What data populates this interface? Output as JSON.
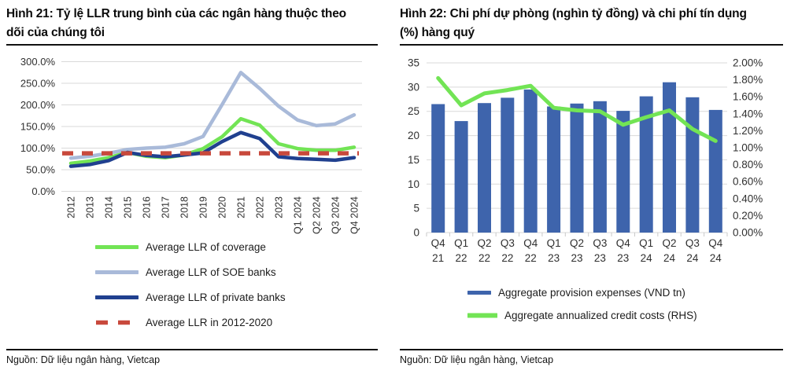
{
  "panels": {
    "left": {
      "title_lines": [
        "Hình 21: Tỷ lệ LLR trung bình của các ngân hàng thuộc theo",
        "dõi của chúng tôi"
      ],
      "source": "Nguồn: Dữ liệu ngân hàng, Vietcap"
    },
    "right": {
      "title_lines": [
        "Hình 22: Chi phí dự phòng (nghìn tỷ đồng) và chi phí tín dụng",
        "(%) hàng quý"
      ],
      "source": "Nguồn: Dữ liệu ngân hàng, Vietcap"
    }
  },
  "colors": {
    "coverage_green": "#72E455",
    "soe_light_blue": "#A9BAD9",
    "private_navy": "#20408F",
    "avg_dashed_red": "#C8493C",
    "bar_blue": "#3E64AC",
    "grid": "#D9D9D9",
    "axis_text": "#303030",
    "rule_black": "#111111"
  },
  "chart_data": [
    {
      "type": "line",
      "title": "Hình 21: Tỷ lệ LLR trung bình của các ngân hàng thuộc theo dõi của chúng tôi",
      "categories": [
        "2012",
        "2013",
        "2014",
        "2015",
        "2016",
        "2017",
        "2018",
        "2019",
        "2020",
        "2021",
        "2022",
        "2023",
        "Q1 2024",
        "Q2 2024",
        "Q3 2024",
        "Q4 2024"
      ],
      "series": [
        {
          "name": "Average LLR of coverage",
          "color": "#72E455",
          "style": "solid",
          "values": [
            65,
            70,
            78,
            90,
            81,
            78,
            84,
            99,
            126,
            168,
            153,
            110,
            99,
            95,
            95,
            102
          ]
        },
        {
          "name": "Average LLR of SOE banks",
          "color": "#A9BAD9",
          "style": "solid",
          "values": [
            77,
            81,
            88,
            97,
            100,
            102,
            110,
            127,
            200,
            275,
            238,
            197,
            165,
            152,
            156,
            177
          ]
        },
        {
          "name": "Average LLR of private banks",
          "color": "#20408F",
          "style": "solid",
          "values": [
            58,
            62,
            71,
            90,
            83,
            80,
            84,
            89,
            115,
            136,
            122,
            80,
            76,
            74,
            72,
            78
          ]
        },
        {
          "name": "Average LLR in 2012-2020",
          "color": "#C8493C",
          "style": "dashed",
          "values": [
            88,
            88,
            88,
            88,
            88,
            88,
            88,
            88,
            88,
            88,
            88,
            88,
            88,
            88,
            88,
            88
          ]
        }
      ],
      "ylim": [
        0,
        300
      ],
      "ytick_step": 50,
      "ytick_format": "0.0%",
      "grid": true,
      "legend_position": "bottom"
    },
    {
      "type": "bar-line-combo",
      "title": "Hình 22: Chi phí dự phòng (nghìn tỷ đồng) và chi phí tín dụng (%) hàng quý",
      "categories": [
        "Q4 21",
        "Q1 22",
        "Q2 22",
        "Q3 22",
        "Q4 22",
        "Q1 23",
        "Q2 23",
        "Q3 23",
        "Q4 23",
        "Q1 24",
        "Q2 24",
        "Q3 24",
        "Q4 24"
      ],
      "series": [
        {
          "name": "Aggregate provision expenses (VND tn)",
          "type": "bar",
          "axis": "left",
          "color": "#3E64AC",
          "values": [
            26.5,
            23,
            26.7,
            27.8,
            29.5,
            26,
            26.6,
            27.1,
            25.1,
            28.1,
            31,
            27.9,
            25.3
          ]
        },
        {
          "name": "Aggregate annualized credit costs (RHS)",
          "type": "line",
          "axis": "right",
          "color": "#72E455",
          "values": [
            1.82,
            1.5,
            1.64,
            1.68,
            1.73,
            1.47,
            1.44,
            1.43,
            1.27,
            1.36,
            1.44,
            1.22,
            1.08
          ]
        }
      ],
      "left_axis": {
        "min": 0,
        "max": 35,
        "step": 5,
        "format": "int"
      },
      "right_axis": {
        "min": 0,
        "max": 2,
        "step": 0.2,
        "format": "0.00%"
      },
      "grid": true,
      "legend_position": "bottom"
    }
  ]
}
